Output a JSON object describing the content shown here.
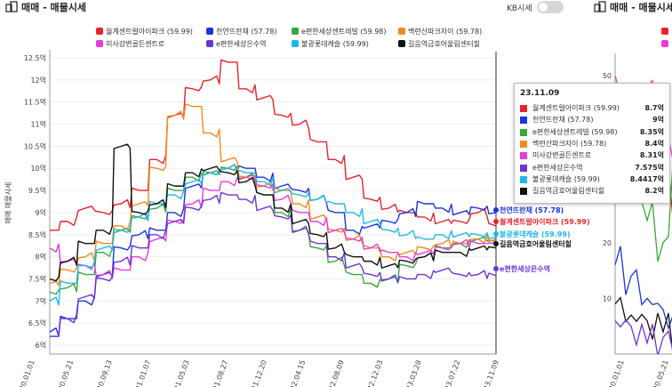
{
  "header": {
    "title": "매매 - 매물시세",
    "title_right": "매매 - 매물시세",
    "kb_label": "KB시세"
  },
  "colors": {
    "red": "#e8242b",
    "blue": "#1a35e0",
    "green": "#37a83b",
    "orange": "#f28b1d",
    "magenta": "#e73be0",
    "purple": "#6c35d8",
    "cyan": "#1fb7e8",
    "black": "#111111"
  },
  "legend": [
    {
      "label": "월계센트럴아이파크 (59.99)",
      "color": "#e8242b"
    },
    {
      "label": "천연뜨란채 (57.78)",
      "color": "#1a35e0"
    },
    {
      "label": "e편한세상센트레빌 (59.98)",
      "color": "#37a83b"
    },
    {
      "label": "백련산파크자이 (59.78)",
      "color": "#f28b1d"
    },
    {
      "label": "미사강변골든센트로",
      "color": "#e73be0"
    },
    {
      "label": "e편한세상은수역",
      "color": "#6c35d8"
    },
    {
      "label": "불광롯데캐슬 (59.99)",
      "color": "#1fb7e8"
    },
    {
      "label": "길음역금호어울림센터힐",
      "color": "#111111"
    }
  ],
  "tooltip": {
    "date": "23.11.09",
    "rows": [
      {
        "name": "월계센트럴아이파크 (59.99)",
        "value": "8.7억",
        "color": "#e8242b"
      },
      {
        "name": "천연뜨란채 (57.78)",
        "value": "9억",
        "color": "#1a35e0"
      },
      {
        "name": "e편한세상센트레빌 (59.98)",
        "value": "8.35억",
        "color": "#37a83b"
      },
      {
        "name": "백련산파크자이 (59.78)",
        "value": "8.4억",
        "color": "#f28b1d"
      },
      {
        "name": "미사강변골든센트로",
        "value": "8.31억",
        "color": "#e73be0"
      },
      {
        "name": "e편한세상은수역",
        "value": "7.575억",
        "color": "#6c35d8"
      },
      {
        "name": "불광롯데캐슬 (59.99)",
        "value": "8.4417억",
        "color": "#1fb7e8"
      },
      {
        "name": "길음역금호어울림센터힐",
        "value": "8.2억",
        "color": "#111111"
      }
    ]
  },
  "chart_data": [
    {
      "type": "line",
      "ylabel": "매매 매물시세",
      "ylim": [
        5.8,
        12.6
      ],
      "y_ticks": [
        "6억",
        "6.5억",
        "7억",
        "7.5억",
        "8억",
        "8.5억",
        "9억",
        "9.5억",
        "10억",
        "10.5억",
        "11억",
        "11.5억",
        "12억",
        "12.5억"
      ],
      "x_ticks": [
        "20.01.01",
        "20.05.21",
        "20.09.13",
        "21.01.07",
        "21.05.03",
        "21.08.27",
        "21.12.20",
        "22.04.15",
        "22.08.09",
        "22.12.03",
        "23.03.28",
        "23.07.22",
        "23.11.09"
      ],
      "end_labels": [
        {
          "text": "천연뜨란채 (57.78)",
          "color": "#1a35e0"
        },
        {
          "text": "월계센트럴아이파크 (59.99)",
          "color": "#e8242b"
        },
        {
          "text": "불광롯데캐슬 (59.99)",
          "color": "#1fb7e8"
        },
        {
          "text": "길음역금호어울림센터힐",
          "color": "#111111"
        },
        {
          "text": "e편한세상은수역",
          "color": "#6c35d8"
        }
      ],
      "series": [
        {
          "name": "월계센트럴아이파크 (59.99)",
          "color": "#e8242b",
          "values": [
            8.6,
            8.8,
            9.1,
            9.0,
            9.2,
            9.5,
            10.2,
            11.2,
            11.8,
            12.0,
            12.4,
            11.8,
            11.6,
            11.2,
            11.0,
            10.6,
            10.2,
            9.8,
            9.3,
            9.1,
            9.0,
            8.9,
            8.8,
            8.8,
            9.0,
            8.7
          ]
        },
        {
          "name": "천연뜨란채 (57.78)",
          "color": "#1a35e0",
          "values": [
            6.3,
            6.6,
            7.0,
            7.6,
            8.2,
            8.5,
            8.6,
            9.0,
            9.6,
            9.9,
            10.0,
            10.0,
            9.8,
            9.6,
            9.5,
            9.3,
            9.0,
            8.6,
            8.7,
            8.8,
            9.0,
            9.2,
            9.1,
            9.0,
            9.1,
            9.0
          ]
        },
        {
          "name": "e편한세상센트레빌 (59.98)",
          "color": "#37a83b",
          "values": [
            7.2,
            7.3,
            7.6,
            8.1,
            8.6,
            8.9,
            9.1,
            9.5,
            9.8,
            9.9,
            10.0,
            9.8,
            9.4,
            9.0,
            8.6,
            8.2,
            7.9,
            7.6,
            7.4,
            7.5,
            7.8,
            8.0,
            8.2,
            8.3,
            8.4,
            8.35
          ]
        },
        {
          "name": "백련산파크자이 (59.78)",
          "color": "#f28b1d",
          "values": [
            7.4,
            7.7,
            8.0,
            8.3,
            8.7,
            9.2,
            10.0,
            11.2,
            11.4,
            10.8,
            10.2,
            9.8,
            9.6,
            9.5,
            9.2,
            8.9,
            8.6,
            8.4,
            8.2,
            8.0,
            8.1,
            8.2,
            8.3,
            8.3,
            8.4,
            8.4
          ]
        },
        {
          "name": "미사강변골든센트로",
          "color": "#e73be0",
          "values": [
            8.2,
            7.9,
            7.8,
            7.6,
            7.7,
            8.0,
            8.4,
            8.8,
            9.2,
            9.5,
            9.7,
            9.8,
            9.6,
            9.3,
            9.0,
            8.8,
            8.6,
            8.4,
            8.2,
            8.1,
            8.0,
            8.1,
            8.2,
            8.3,
            8.3,
            8.31
          ]
        },
        {
          "name": "e편한세상은수역",
          "color": "#6c35d8",
          "values": [
            6.2,
            6.6,
            7.1,
            7.5,
            7.9,
            8.2,
            8.5,
            8.8,
            9.1,
            9.3,
            9.4,
            9.3,
            9.1,
            8.9,
            8.6,
            8.3,
            8.0,
            7.8,
            7.6,
            7.5,
            7.5,
            7.6,
            7.7,
            7.6,
            7.6,
            7.575
          ]
        },
        {
          "name": "불광롯데캐슬 (59.99)",
          "color": "#1fb7e8",
          "values": [
            7.0,
            7.4,
            7.8,
            8.2,
            8.6,
            8.9,
            9.2,
            9.4,
            9.7,
            9.9,
            10.0,
            9.9,
            9.7,
            9.5,
            9.4,
            9.3,
            9.2,
            9.0,
            8.8,
            8.6,
            8.5,
            8.4,
            8.5,
            8.5,
            8.5,
            8.44
          ]
        },
        {
          "name": "길음역금호어울림센터힐",
          "color": "#111111",
          "values": [
            7.5,
            7.9,
            8.3,
            8.6,
            10.5,
            9.0,
            9.2,
            9.6,
            9.9,
            10.0,
            9.9,
            9.7,
            9.4,
            9.1,
            8.8,
            8.5,
            8.2,
            8.0,
            7.9,
            7.8,
            7.9,
            8.0,
            8.1,
            8.1,
            8.2,
            8.2
          ]
        }
      ]
    },
    {
      "type": "line",
      "ylim": [
        0,
        54
      ],
      "y_ticks": [
        "10",
        "20",
        "30",
        "40",
        "50"
      ],
      "x_ticks": [
        "20.01.01",
        "20.05.21"
      ],
      "series": [
        {
          "color": "#e8242b",
          "values": [
            44,
            40,
            36,
            30,
            26
          ]
        },
        {
          "color": "#37a83b",
          "values": [
            46,
            42,
            24,
            20,
            38
          ]
        },
        {
          "color": "#e73be0",
          "values": [
            50,
            44,
            48,
            40,
            33
          ]
        },
        {
          "color": "#1a35e0",
          "values": [
            16,
            14,
            10,
            8,
            4
          ]
        },
        {
          "color": "#111111",
          "values": [
            9,
            7,
            6,
            4,
            2
          ]
        },
        {
          "color": "#6c35d8",
          "values": [
            6,
            5,
            2,
            3,
            1
          ]
        }
      ]
    }
  ]
}
